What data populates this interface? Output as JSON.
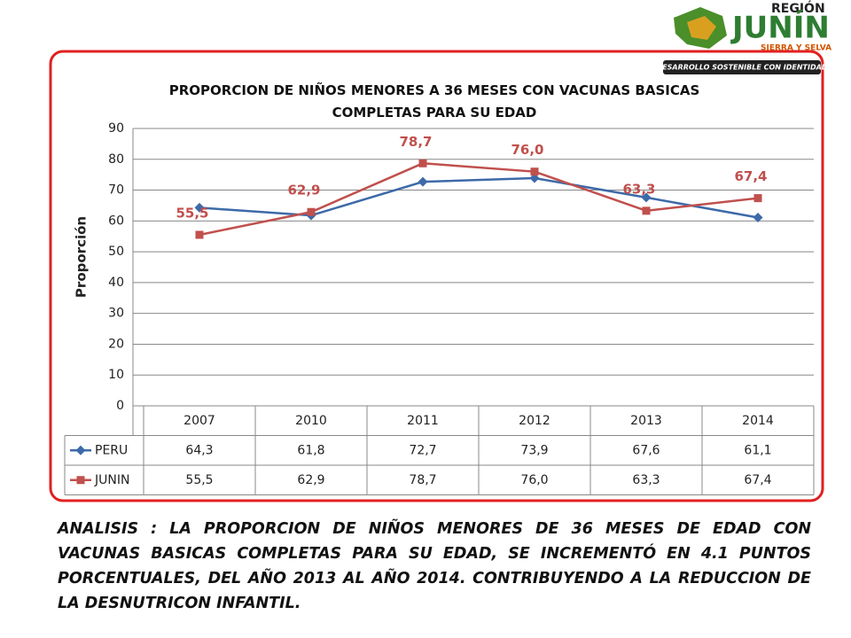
{
  "logo": {
    "region": "REGIÓN",
    "name": "JUNÍN",
    "tagline": "SIERRA Y SELVA",
    "motto": "DESARROLLO SOSTENIBLE CON IDENTIDAD"
  },
  "chart_data": {
    "type": "line",
    "title": "PROPORCION DE NIÑOS MENORES A 36 MESES CON VACUNAS BASICAS\nCOMPLETAS PARA SU EDAD",
    "y_label": "Proporción",
    "categories": [
      "2007",
      "2010",
      "2011",
      "2012",
      "2013",
      "2014"
    ],
    "series": [
      {
        "name": "PERU",
        "color": "#3d6aa8",
        "marker": "diamond",
        "values": [
          64.3,
          61.8,
          72.7,
          73.9,
          67.6,
          61.1
        ],
        "value_labels": [
          "64,3",
          "61,8",
          "72,7",
          "73,9",
          "67,6",
          "61,1"
        ],
        "show_labels": false
      },
      {
        "name": "JUNIN",
        "color": "#c0504d",
        "marker": "square",
        "values": [
          55.5,
          62.9,
          78.7,
          76.0,
          63.3,
          67.4
        ],
        "value_labels": [
          "55,5",
          "62,9",
          "78,7",
          "76,0",
          "63,3",
          "67,4"
        ],
        "show_labels": true
      }
    ],
    "ylim": [
      0,
      90
    ],
    "yticks": [
      0,
      10,
      20,
      30,
      40,
      50,
      60,
      70,
      80,
      90
    ],
    "grid": true,
    "data_table": true
  },
  "analysis": "ANALISIS : LA PROPORCION DE NIÑOS  MENORES DE 36 MESES DE EDAD CON VACUNAS BASICAS COMPLETAS PARA SU EDAD,  SE  INCREMENTÓ EN 4.1  PUNTOS PORCENTUALES, DEL AÑO 2013 AL AÑO 2014.  CONTRIBUYENDO A LA REDUCCION DE LA DESNUTRICON INFANTIL."
}
